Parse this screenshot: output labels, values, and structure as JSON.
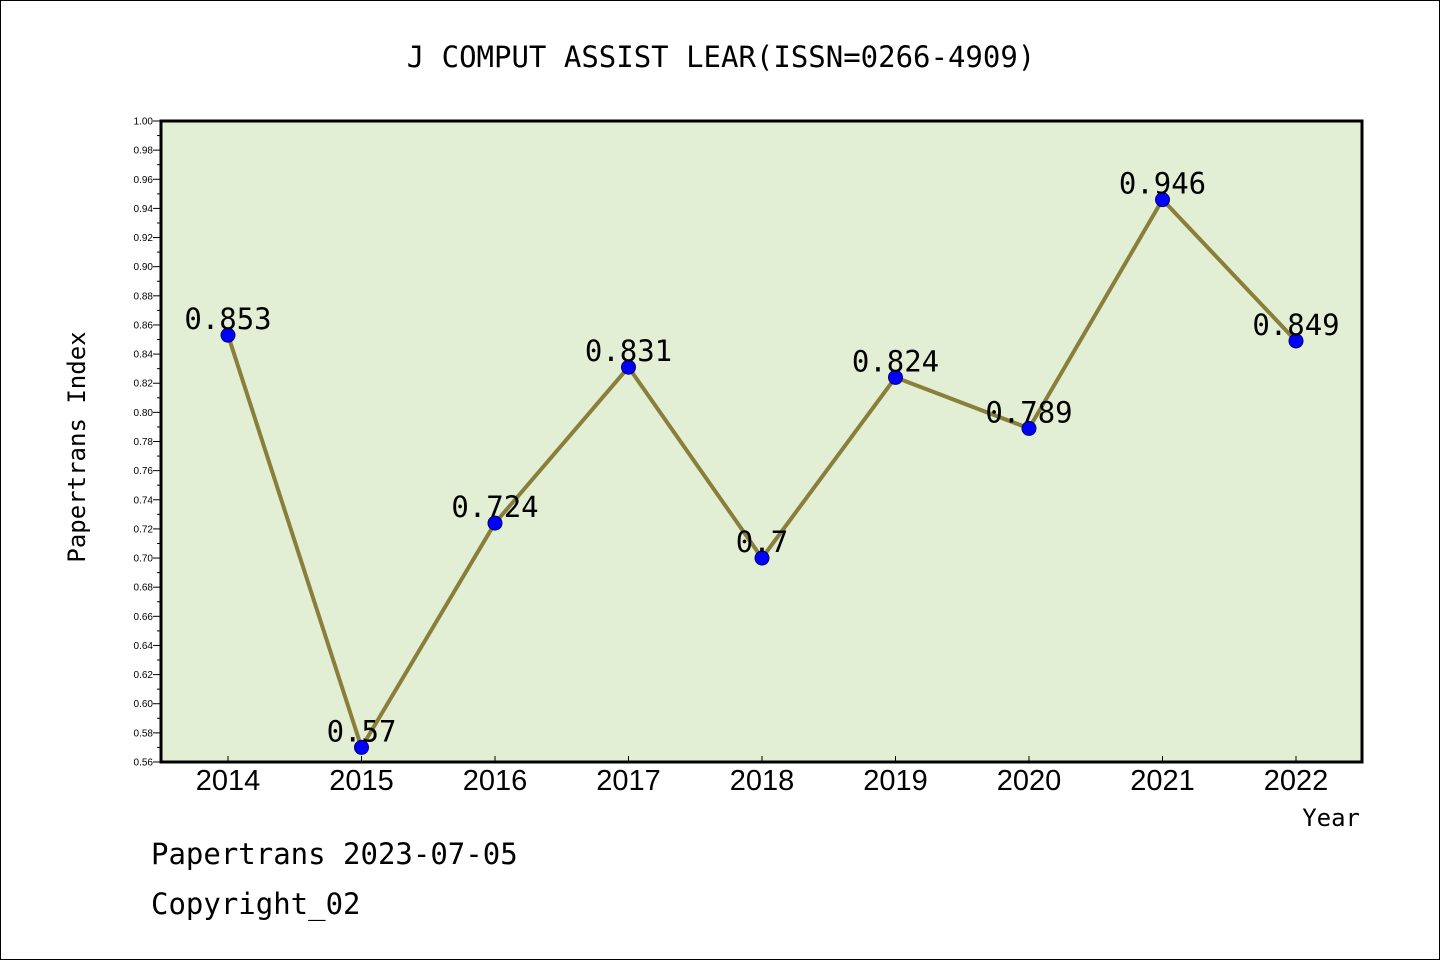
{
  "chart_data": {
    "type": "line",
    "title": "J COMPUT ASSIST LEAR(ISSN=0266-4909)",
    "xlabel": "Year",
    "ylabel": "Papertrans Index",
    "categories": [
      "2014",
      "2015",
      "2016",
      "2017",
      "2018",
      "2019",
      "2020",
      "2021",
      "2022"
    ],
    "series": [
      {
        "values": [
          0.853,
          0.57,
          0.724,
          0.831,
          0.7,
          0.824,
          0.789,
          0.946,
          0.849
        ],
        "labels": [
          "0.853",
          "0.57",
          "0.724",
          "0.831",
          "0.7",
          "0.824",
          "0.789",
          "0.946",
          "0.849"
        ]
      }
    ],
    "ylim": [
      0.56,
      1.0
    ],
    "ytick_step": 0.02,
    "grid": false,
    "colors": {
      "plot_background": "#e2efd5",
      "line": "#8a7f3a",
      "marker": "#0000ff"
    }
  },
  "footer": {
    "line1": "Papertrans 2023-07-05",
    "line2": "Copyright_02"
  }
}
